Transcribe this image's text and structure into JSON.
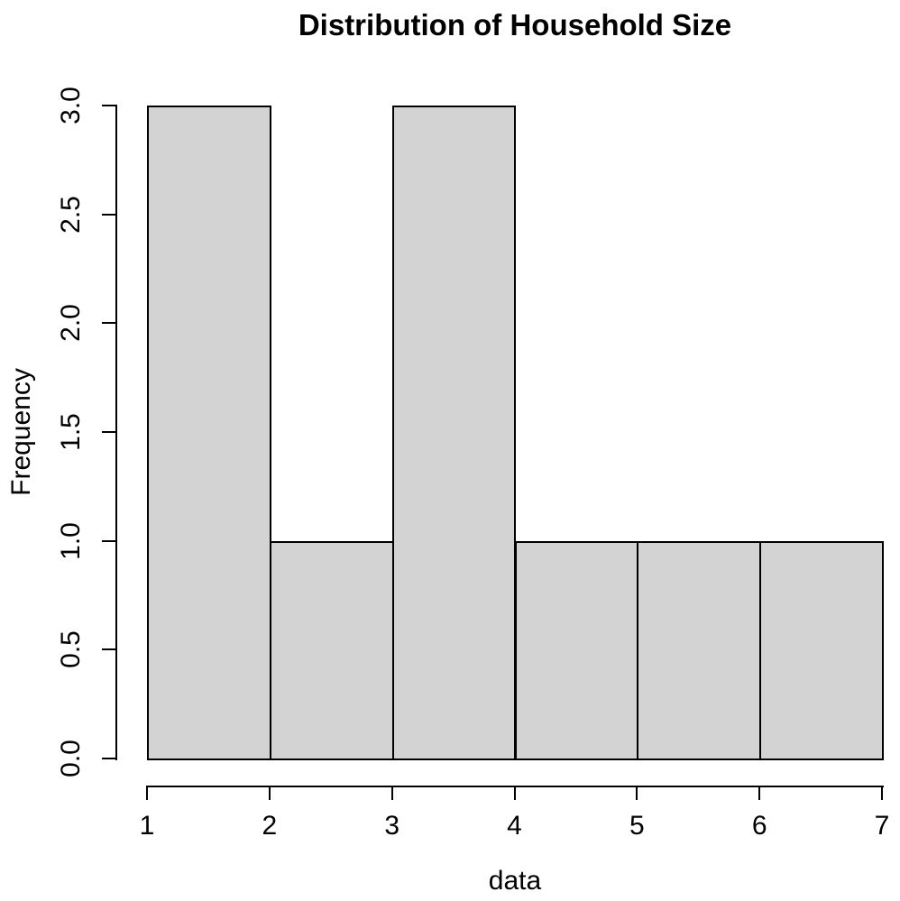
{
  "chart_data": {
    "type": "bar",
    "subtype": "histogram",
    "title": "Distribution of Household Size",
    "xlabel": "data",
    "ylabel": "Frequency",
    "bin_edges": [
      1,
      2,
      3,
      4,
      5,
      6,
      7
    ],
    "counts": [
      3,
      1,
      3,
      1,
      1,
      1
    ],
    "x_tick_labels": [
      "1",
      "2",
      "3",
      "4",
      "5",
      "6",
      "7"
    ],
    "y_tick_labels": [
      "0.0",
      "0.5",
      "1.0",
      "1.5",
      "2.0",
      "2.5",
      "3.0"
    ],
    "xlim": [
      1,
      7
    ],
    "ylim": [
      0,
      3
    ],
    "grid": false,
    "legend_position": "none",
    "colors": {
      "bar_fill": "#d3d3d3",
      "bar_border": "#000000",
      "axis": "#000000",
      "text": "#000000",
      "background": "#ffffff"
    }
  }
}
